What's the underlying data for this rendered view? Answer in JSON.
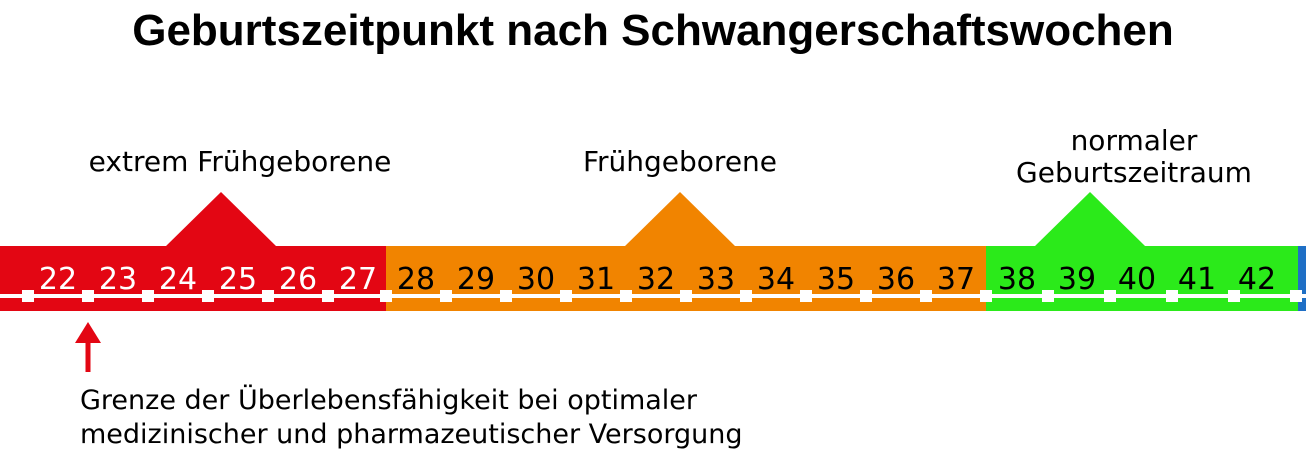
{
  "title": "Geburtszeitpunkt nach Schwangerschaftswochen",
  "categories": [
    {
      "label": "extrem Frühgeborene",
      "color": "#e30613",
      "text_color": "#ffffff",
      "weeks": [
        "22",
        "23",
        "24",
        "25",
        "26",
        "27"
      ]
    },
    {
      "label": "Frühgeborene",
      "color": "#f18400",
      "text_color": "#000000",
      "weeks": [
        "28",
        "29",
        "30",
        "31",
        "32",
        "33",
        "34",
        "35",
        "36",
        "37"
      ]
    },
    {
      "label_lines": [
        "normaler",
        "Geburtszeitraum"
      ],
      "color": "#2bea1a",
      "text_color": "#000000",
      "weeks": [
        "38",
        "39",
        "40",
        "41",
        "42"
      ]
    }
  ],
  "edge_color": "#1f6fc5",
  "arrow_color": "#e30613",
  "note_lines": [
    "Grenze der Überlebensfähigkeit bei optimaler",
    "medizinischer und pharmazeutischer Versorgung"
  ]
}
